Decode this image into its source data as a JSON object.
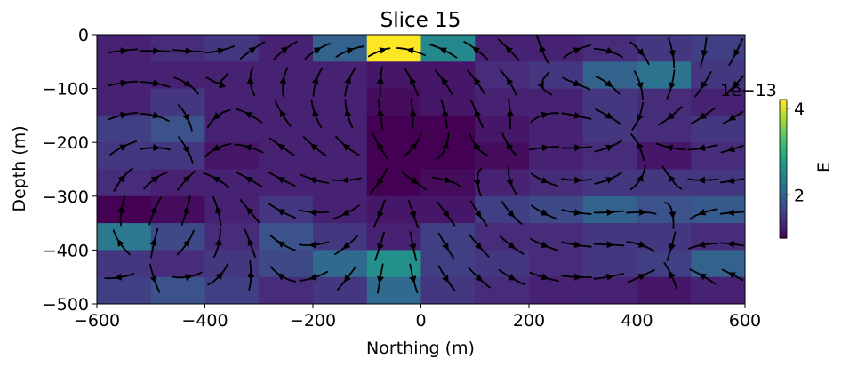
{
  "chart_data": {
    "type": "heatmap",
    "title": "Slice 15",
    "xlabel": "Northing (m)",
    "ylabel": "Depth (m)",
    "xlim": [
      -600,
      600
    ],
    "ylim": [
      -500,
      0
    ],
    "x_ticks": [
      "−600",
      "−400",
      "−200",
      "0",
      "200",
      "400",
      "600"
    ],
    "x_tick_values": [
      -600,
      -400,
      -200,
      0,
      200,
      400,
      600
    ],
    "y_ticks": [
      "0",
      "−100",
      "−200",
      "−300",
      "−400",
      "−500"
    ],
    "y_tick_values": [
      0,
      -100,
      -200,
      -300,
      -400,
      -500
    ],
    "x_edges": [
      -600,
      -500,
      -400,
      -300,
      -200,
      -100,
      0,
      100,
      200,
      300,
      400,
      500,
      600
    ],
    "y_edges": [
      0,
      -50,
      -100,
      -150,
      -200,
      -250,
      -300,
      -350,
      -400,
      -450,
      -500
    ],
    "values_e13": [
      [
        1.3,
        1.4,
        1.5,
        1.3,
        2.0,
        4.2,
        2.5,
        1.3,
        1.3,
        1.4,
        1.5,
        1.6
      ],
      [
        1.3,
        1.3,
        1.3,
        1.3,
        1.3,
        1.2,
        1.2,
        1.4,
        1.5,
        2.0,
        2.2,
        1.5
      ],
      [
        1.3,
        1.5,
        1.3,
        1.3,
        1.3,
        1.1,
        1.2,
        1.3,
        1.3,
        1.5,
        1.4,
        1.3
      ],
      [
        1.6,
        1.8,
        1.3,
        1.3,
        1.3,
        1.0,
        1.0,
        1.2,
        1.3,
        1.5,
        1.4,
        1.5
      ],
      [
        1.5,
        1.5,
        1.2,
        1.3,
        1.3,
        1.0,
        1.0,
        1.1,
        1.3,
        1.4,
        1.2,
        1.4
      ],
      [
        1.4,
        1.3,
        1.3,
        1.3,
        1.3,
        1.0,
        1.1,
        1.3,
        1.4,
        1.5,
        1.5,
        1.5
      ],
      [
        1.0,
        1.1,
        1.3,
        1.5,
        1.3,
        1.2,
        1.2,
        1.6,
        1.7,
        2.0,
        1.8,
        1.9
      ],
      [
        2.3,
        1.7,
        1.4,
        1.8,
        1.5,
        1.3,
        1.6,
        1.4,
        1.4,
        1.5,
        1.5,
        1.4
      ],
      [
        1.5,
        1.4,
        1.5,
        1.7,
        2.1,
        2.6,
        1.6,
        1.5,
        1.4,
        1.5,
        1.6,
        2.0
      ],
      [
        1.6,
        1.8,
        1.6,
        1.4,
        1.5,
        2.1,
        1.5,
        1.4,
        1.3,
        1.3,
        1.2,
        1.3
      ]
    ],
    "colorbar": {
      "label": "E",
      "multiplier": "1e−13",
      "ticks": [
        "2",
        "4"
      ],
      "tick_values": [
        2,
        4
      ],
      "range": [
        1.0,
        4.2
      ],
      "colormap": "viridis"
    },
    "streamline_color": "#000000",
    "grid": false
  }
}
